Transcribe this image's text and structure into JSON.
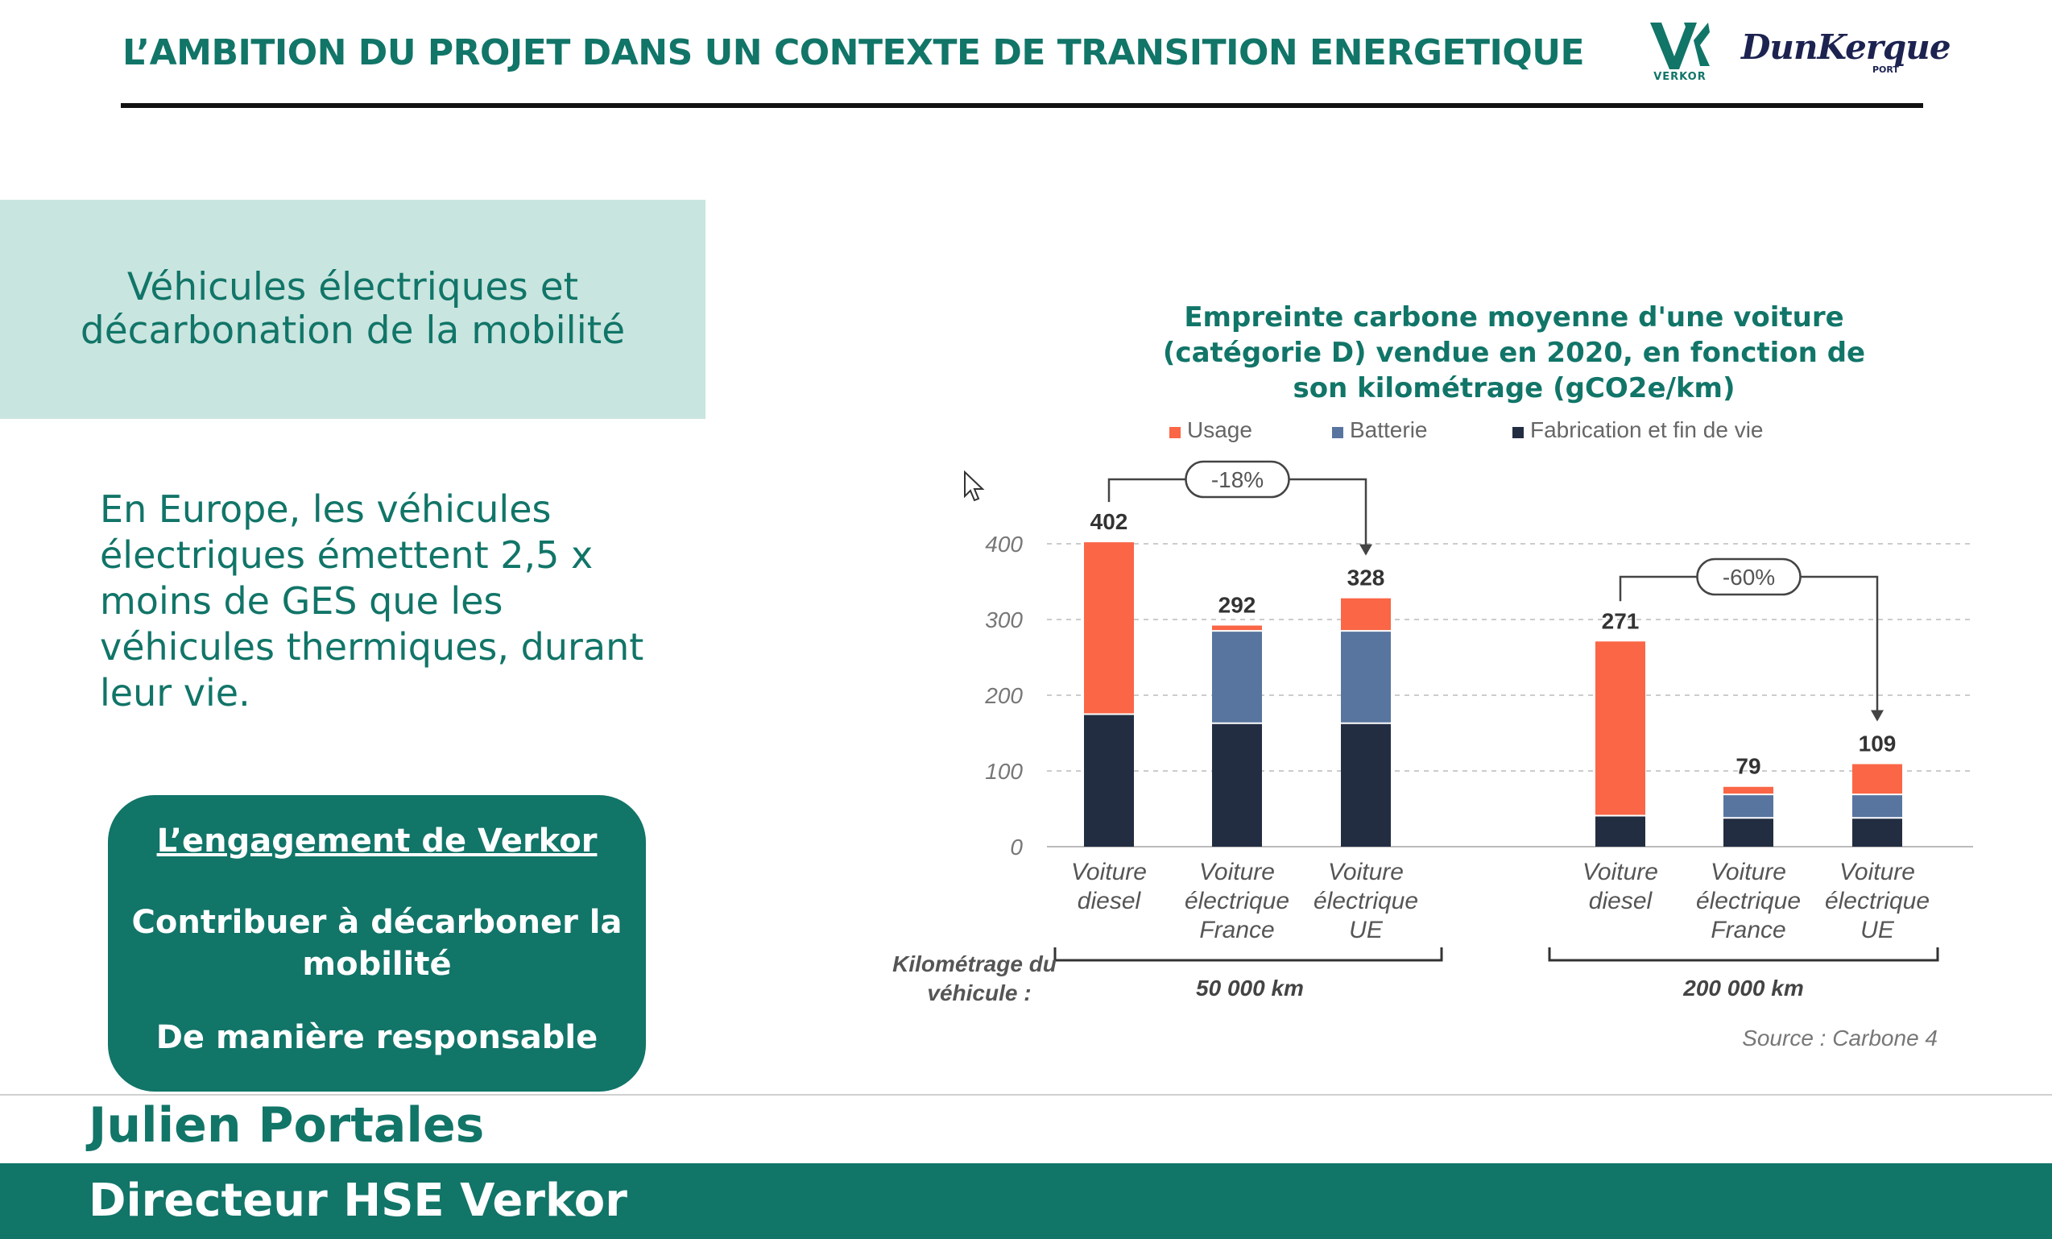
{
  "header": {
    "title": "L’AMBITION DU PROJET DANS UN CONTEXTE DE TRANSITION ENERGETIQUE",
    "logo_verkor_text": "VERKOR",
    "logo_dunkerque_text": "DunKerque",
    "logo_dunkerque_sub": "PORT"
  },
  "left_panel": {
    "topic": "Véhicules électriques et décarbonation de la mobilité",
    "claim": "En Europe, les véhicules électriques émettent 2,5 x moins de GES que les véhicules thermiques, durant leur vie.",
    "engagement": {
      "title": "L’engagement de Verkor",
      "line1": "Contribuer à décarboner la mobilité",
      "line2": "De manière responsable"
    }
  },
  "footer": {
    "speaker_name": "Julien Portales",
    "speaker_role": "Directeur HSE Verkor"
  },
  "colors": {
    "teal": "#117568",
    "usage": "#fa6646",
    "batterie": "#5875a0",
    "fabrication": "#232d42"
  },
  "chart_data": {
    "type": "bar",
    "stacked": true,
    "title": "Empreinte carbone moyenne d'une voiture (catégorie D) vendue en 2020, en fonction de son kilométrage (gCO2e/km)",
    "ylim": [
      0,
      400
    ],
    "yticks": [
      "0",
      "100",
      "200",
      "300",
      "400"
    ],
    "grid": true,
    "legend_position": "top",
    "legend": [
      "Usage",
      "Batterie",
      "Fabrication et fin de vie"
    ],
    "x_axis_caption": "Kilométrage du véhicule :",
    "groups": [
      {
        "label": "50 000 km",
        "categories": [
          "Voiture diesel",
          "Voiture électrique France",
          "Voiture électrique UE"
        ],
        "totals": [
          "402",
          "292",
          "328"
        ],
        "series": [
          {
            "name": "Fabrication et fin de vie",
            "values": [
              175,
              163,
              163
            ]
          },
          {
            "name": "Batterie",
            "values": [
              0,
              122,
              122
            ]
          },
          {
            "name": "Usage",
            "values": [
              227,
              7,
              43
            ]
          }
        ],
        "annotation": "-18%"
      },
      {
        "label": "200 000 km",
        "categories": [
          "Voiture diesel",
          "Voiture électrique France",
          "Voiture électrique UE"
        ],
        "totals": [
          "271",
          "79",
          "109"
        ],
        "series": [
          {
            "name": "Fabrication et fin de vie",
            "values": [
              41,
              38,
              38
            ]
          },
          {
            "name": "Batterie",
            "values": [
              0,
              31,
              31
            ]
          },
          {
            "name": "Usage",
            "values": [
              230,
              10,
              40
            ]
          }
        ],
        "annotation": "-60%"
      }
    ],
    "source": "Source : Carbone 4"
  }
}
